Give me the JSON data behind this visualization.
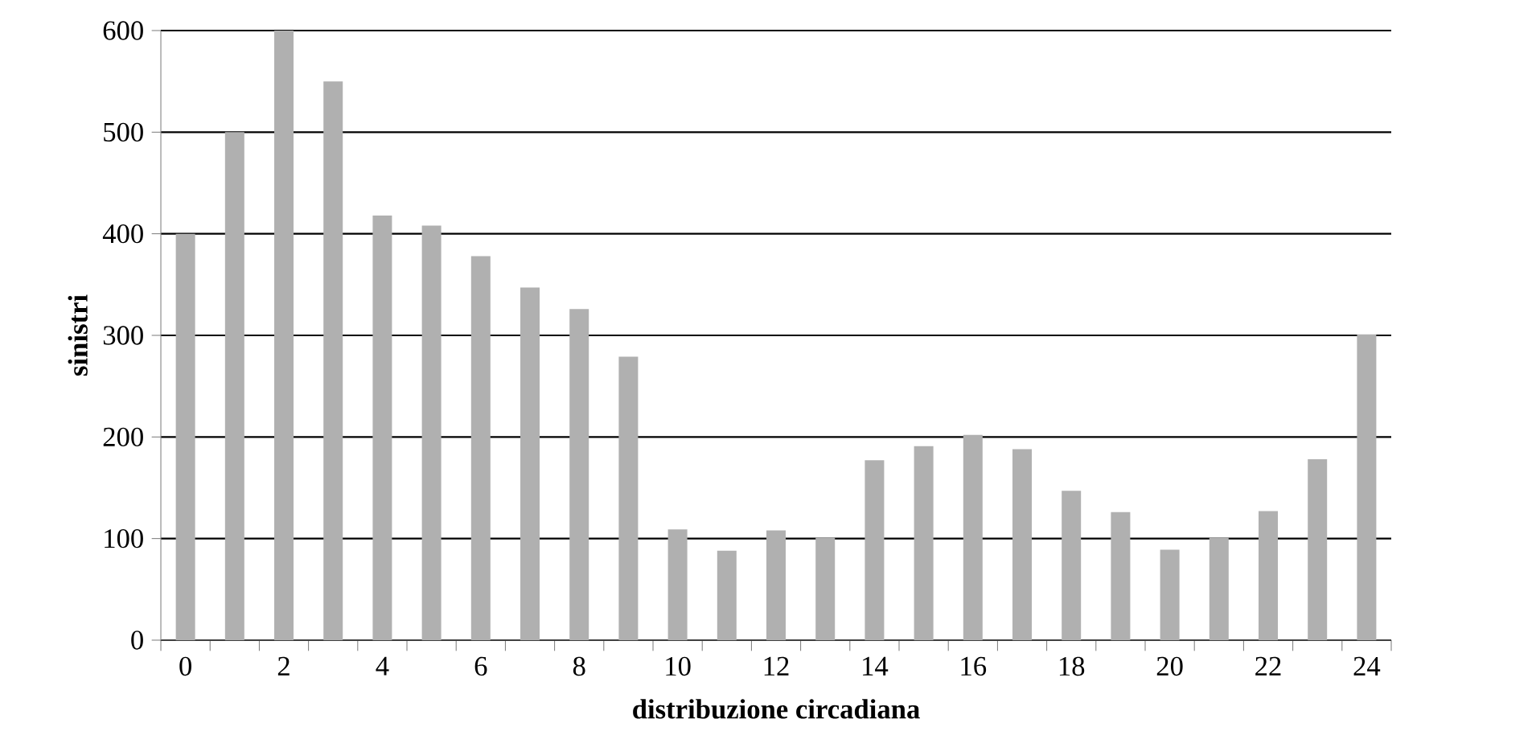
{
  "chart_data": {
    "type": "bar",
    "xlabel": "distribuzione circadiana",
    "ylabel": "sinistri",
    "categories": [
      "0",
      null,
      "2",
      null,
      "4",
      null,
      "6",
      null,
      "8",
      null,
      "10",
      null,
      "12",
      null,
      "14",
      null,
      "16",
      null,
      "18",
      null,
      "20",
      null,
      "22",
      null,
      "24"
    ],
    "values": [
      400,
      500,
      600,
      550,
      418,
      408,
      378,
      347,
      326,
      279,
      109,
      88,
      108,
      101,
      177,
      191,
      202,
      188,
      147,
      126,
      89,
      101,
      127,
      178,
      301
    ],
    "color": "#b0b0b0",
    "ylim": [
      0,
      600
    ],
    "yticks": [
      0,
      100,
      200,
      300,
      400,
      500,
      600
    ],
    "grid": "y"
  }
}
